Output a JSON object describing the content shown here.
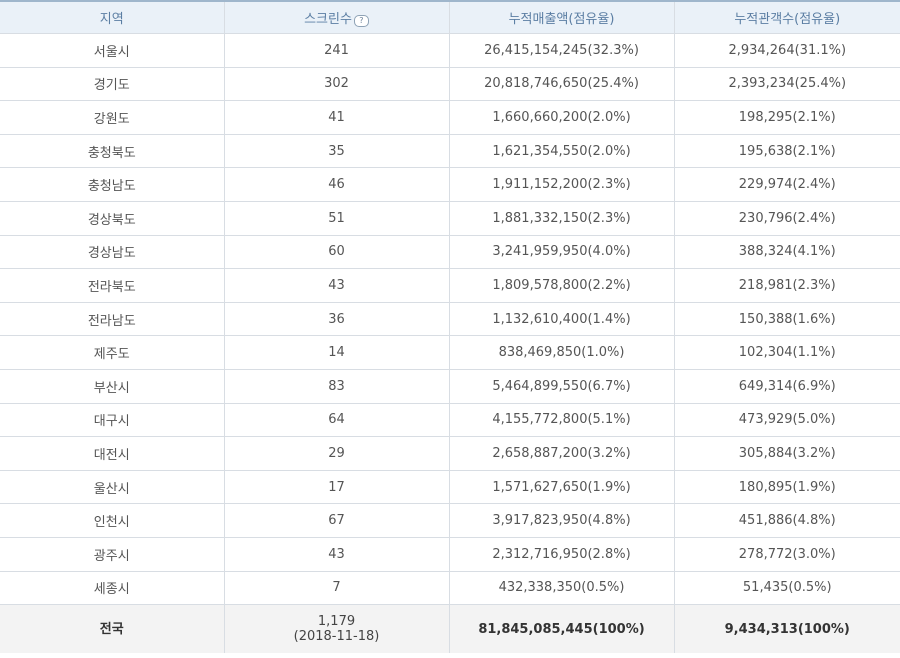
{
  "headers": {
    "region": "지역",
    "screens": "스크린수",
    "revenue": "누적매출액(점유율)",
    "audience": "누적관객수(점유율)"
  },
  "help_icon_glyph": "?",
  "rows": [
    {
      "region": "서울시",
      "screens": "241",
      "revenue": "26,415,154,245(32.3%)",
      "audience": "2,934,264(31.1%)"
    },
    {
      "region": "경기도",
      "screens": "302",
      "revenue": "20,818,746,650(25.4%)",
      "audience": "2,393,234(25.4%)"
    },
    {
      "region": "강원도",
      "screens": "41",
      "revenue": "1,660,660,200(2.0%)",
      "audience": "198,295(2.1%)"
    },
    {
      "region": "충청북도",
      "screens": "35",
      "revenue": "1,621,354,550(2.0%)",
      "audience": "195,638(2.1%)"
    },
    {
      "region": "충청남도",
      "screens": "46",
      "revenue": "1,911,152,200(2.3%)",
      "audience": "229,974(2.4%)"
    },
    {
      "region": "경상북도",
      "screens": "51",
      "revenue": "1,881,332,150(2.3%)",
      "audience": "230,796(2.4%)"
    },
    {
      "region": "경상남도",
      "screens": "60",
      "revenue": "3,241,959,950(4.0%)",
      "audience": "388,324(4.1%)"
    },
    {
      "region": "전라북도",
      "screens": "43",
      "revenue": "1,809,578,800(2.2%)",
      "audience": "218,981(2.3%)"
    },
    {
      "region": "전라남도",
      "screens": "36",
      "revenue": "1,132,610,400(1.4%)",
      "audience": "150,388(1.6%)"
    },
    {
      "region": "제주도",
      "screens": "14",
      "revenue": "838,469,850(1.0%)",
      "audience": "102,304(1.1%)"
    },
    {
      "region": "부산시",
      "screens": "83",
      "revenue": "5,464,899,550(6.7%)",
      "audience": "649,314(6.9%)"
    },
    {
      "region": "대구시",
      "screens": "64",
      "revenue": "4,155,772,800(5.1%)",
      "audience": "473,929(5.0%)"
    },
    {
      "region": "대전시",
      "screens": "29",
      "revenue": "2,658,887,200(3.2%)",
      "audience": "305,884(3.2%)"
    },
    {
      "region": "울산시",
      "screens": "17",
      "revenue": "1,571,627,650(1.9%)",
      "audience": "180,895(1.9%)"
    },
    {
      "region": "인천시",
      "screens": "67",
      "revenue": "3,917,823,950(4.8%)",
      "audience": "451,886(4.8%)"
    },
    {
      "region": "광주시",
      "screens": "43",
      "revenue": "2,312,716,950(2.8%)",
      "audience": "278,772(3.0%)"
    },
    {
      "region": "세종시",
      "screens": "7",
      "revenue": "432,338,350(0.5%)",
      "audience": "51,435(0.5%)"
    }
  ],
  "total": {
    "region": "전국",
    "screens": "1,179",
    "date": "(2018-11-18)",
    "revenue": "81,845,085,445(100%)",
    "audience": "9,434,313(100%)"
  }
}
